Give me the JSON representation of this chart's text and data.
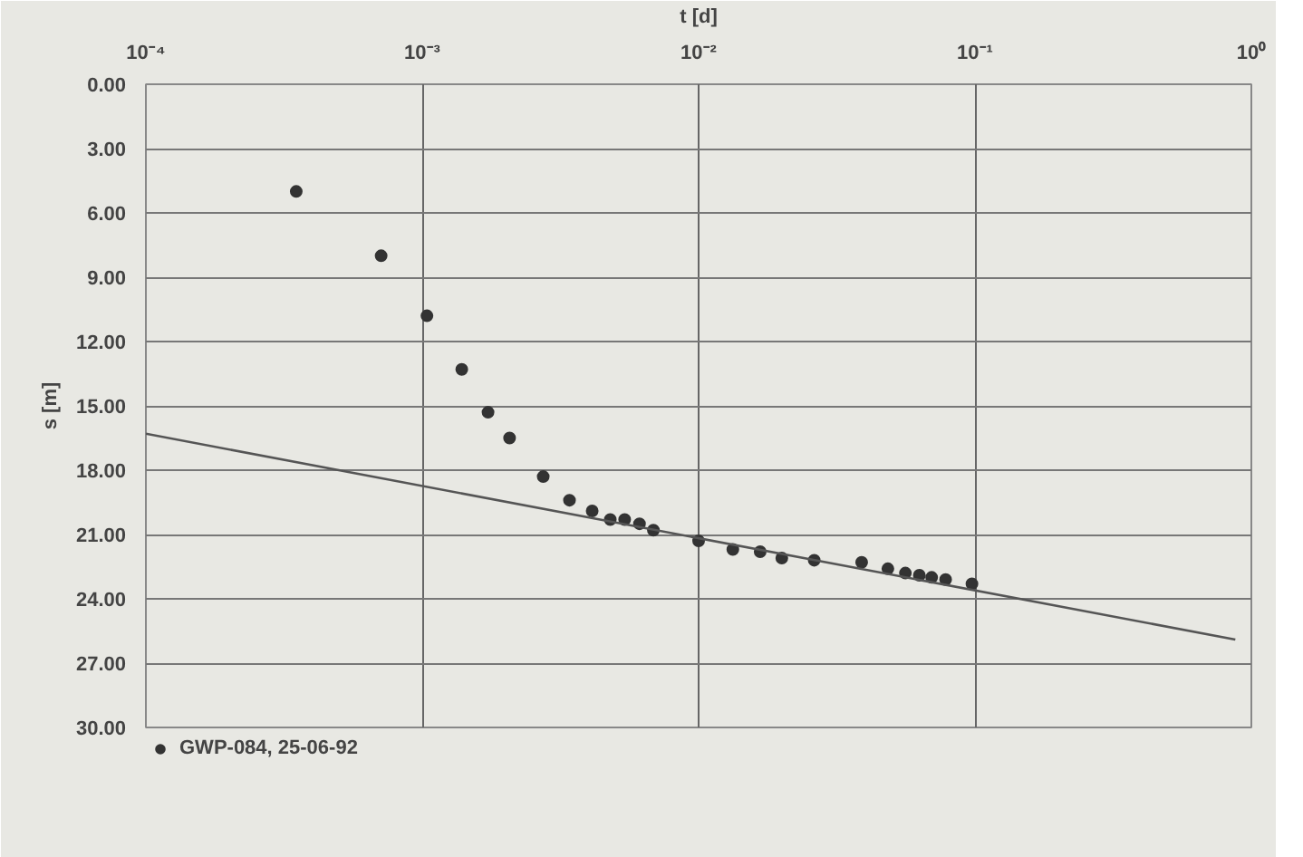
{
  "chart_data": {
    "type": "scatter",
    "xlabel": "t [d]",
    "ylabel": "s [m]",
    "log": "x",
    "grid": true,
    "legend": "bottom left",
    "xlim": [
      0.0001,
      1
    ],
    "ylim": [
      30,
      0
    ],
    "xticks": [
      {
        "value": 0.0001,
        "label": "10⁻⁴"
      },
      {
        "value": 0.001,
        "label": "10⁻³"
      },
      {
        "value": 0.01,
        "label": "10⁻²"
      },
      {
        "value": 0.1,
        "label": "10⁻¹"
      },
      {
        "value": 1,
        "label": "10⁰"
      }
    ],
    "yticks": [
      {
        "value": 0,
        "label": "0.00"
      },
      {
        "value": 3,
        "label": "3.00"
      },
      {
        "value": 6,
        "label": "6.00"
      },
      {
        "value": 9,
        "label": "9.00"
      },
      {
        "value": 12,
        "label": "12.00"
      },
      {
        "value": 15,
        "label": "15.00"
      },
      {
        "value": 18,
        "label": "18.00"
      },
      {
        "value": 21,
        "label": "21.00"
      },
      {
        "value": 24,
        "label": "24.00"
      },
      {
        "value": 27,
        "label": "27.00"
      },
      {
        "value": 30,
        "label": "30.00"
      }
    ],
    "series": [
      {
        "name": "GWP-084, 25-06-92",
        "marker": "circle",
        "color": "#333333",
        "x": [
          0.00035,
          0.00071,
          0.00104,
          0.00139,
          0.00173,
          0.00207,
          0.00274,
          0.00341,
          0.00412,
          0.00479,
          0.0054,
          0.00611,
          0.00686,
          0.01,
          0.0133,
          0.0167,
          0.02,
          0.0262,
          0.0389,
          0.0484,
          0.056,
          0.0629,
          0.0697,
          0.0783,
          0.0975
        ],
        "values": [
          5.0,
          8.0,
          10.8,
          13.3,
          15.3,
          16.5,
          18.3,
          19.4,
          19.9,
          20.3,
          20.3,
          20.5,
          20.8,
          21.3,
          21.7,
          21.8,
          22.1,
          22.2,
          22.3,
          22.6,
          22.8,
          22.9,
          23.0,
          23.1,
          23.3
        ]
      },
      {
        "type": "line",
        "color": "#555555",
        "x": [
          0.0001,
          0.875
        ],
        "values": [
          16.3,
          25.9
        ]
      }
    ]
  }
}
